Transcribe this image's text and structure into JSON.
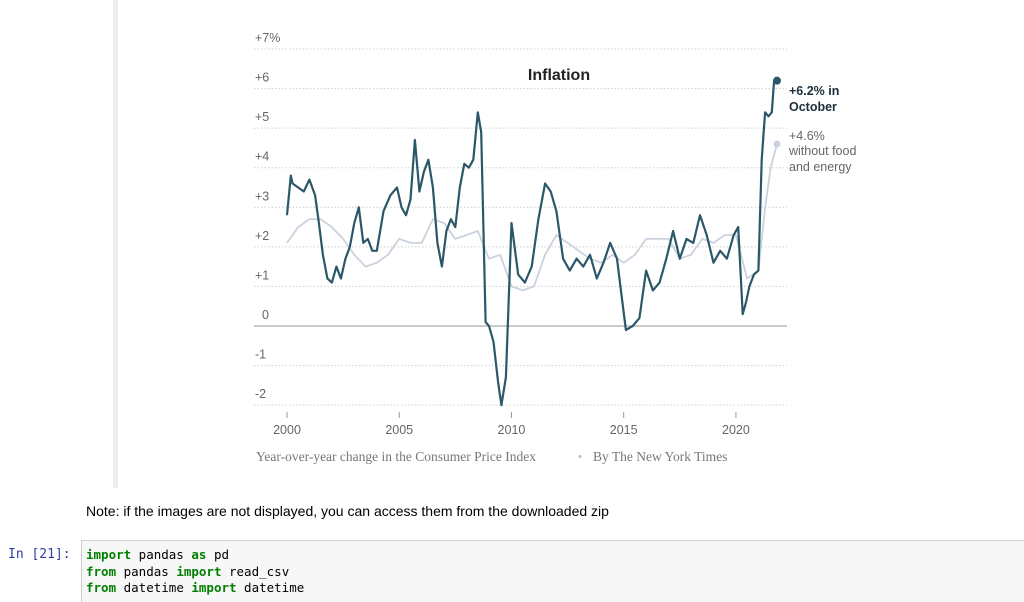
{
  "chart_data": {
    "type": "line",
    "title": "Inflation",
    "caption": "Year-over-year change in the Consumer Price Index",
    "credit": "By The New York Times",
    "y_ticks": [
      "+7%",
      "+6",
      "+5",
      "+4",
      "+3",
      "+2",
      "+1",
      "0",
      "-1",
      "-2"
    ],
    "y_tick_values": [
      7,
      6,
      5,
      4,
      3,
      2,
      1,
      0,
      -1,
      -2
    ],
    "x_ticks": [
      "2000",
      "2005",
      "2010",
      "2015",
      "2020"
    ],
    "x_tick_values": [
      2000,
      2005,
      2010,
      2015,
      2020
    ],
    "xlim": [
      2000,
      2021.83
    ],
    "ylim": [
      -2,
      7
    ],
    "grid": true,
    "series": [
      {
        "name": "Consumer Price Index",
        "color": "#2b5868",
        "x": [
          2000.0,
          2000.17,
          2000.25,
          2000.5,
          2000.75,
          2001.0,
          2001.25,
          2001.42,
          2001.6,
          2001.8,
          2002.0,
          2002.2,
          2002.4,
          2002.6,
          2002.8,
          2003.0,
          2003.2,
          2003.4,
          2003.6,
          2003.8,
          2004.0,
          2004.3,
          2004.6,
          2004.9,
          2005.1,
          2005.3,
          2005.5,
          2005.7,
          2005.9,
          2006.1,
          2006.3,
          2006.5,
          2006.7,
          2006.9,
          2007.1,
          2007.3,
          2007.5,
          2007.7,
          2007.9,
          2008.1,
          2008.3,
          2008.5,
          2008.65,
          2008.85,
          2009.0,
          2009.2,
          2009.4,
          2009.55,
          2009.75,
          2010.0,
          2010.3,
          2010.6,
          2010.9,
          2011.2,
          2011.5,
          2011.75,
          2012.0,
          2012.3,
          2012.6,
          2012.9,
          2013.2,
          2013.5,
          2013.8,
          2014.1,
          2014.4,
          2014.7,
          2014.9,
          2015.1,
          2015.4,
          2015.7,
          2016.0,
          2016.3,
          2016.6,
          2016.9,
          2017.2,
          2017.5,
          2017.8,
          2018.1,
          2018.4,
          2018.7,
          2019.0,
          2019.3,
          2019.6,
          2019.9,
          2020.1,
          2020.3,
          2020.45,
          2020.6,
          2020.8,
          2021.0,
          2021.15,
          2021.3,
          2021.45,
          2021.6,
          2021.7,
          2021.83
        ],
        "values": [
          2.8,
          3.8,
          3.6,
          3.5,
          3.4,
          3.7,
          3.3,
          2.6,
          1.8,
          1.2,
          1.1,
          1.5,
          1.2,
          1.7,
          2.0,
          2.6,
          3.0,
          2.1,
          2.2,
          1.9,
          1.9,
          2.9,
          3.3,
          3.5,
          3.0,
          2.8,
          3.2,
          4.7,
          3.4,
          3.9,
          4.2,
          3.5,
          2.1,
          1.5,
          2.4,
          2.7,
          2.5,
          3.5,
          4.1,
          4.0,
          4.2,
          5.4,
          4.9,
          0.1,
          0.0,
          -0.4,
          -1.4,
          -2.0,
          -1.3,
          2.6,
          1.3,
          1.1,
          1.5,
          2.7,
          3.6,
          3.4,
          2.9,
          1.7,
          1.4,
          1.7,
          1.5,
          1.8,
          1.2,
          1.6,
          2.1,
          1.7,
          0.8,
          -0.1,
          0.0,
          0.2,
          1.4,
          0.9,
          1.1,
          1.7,
          2.4,
          1.7,
          2.2,
          2.1,
          2.8,
          2.3,
          1.6,
          1.9,
          1.7,
          2.3,
          2.5,
          0.3,
          0.6,
          1.0,
          1.3,
          1.4,
          4.2,
          5.4,
          5.3,
          5.4,
          6.2,
          6.2
        ]
      },
      {
        "name": "without food and energy",
        "color": "#c9d2dd",
        "x": [
          2000.0,
          2000.5,
          2001.0,
          2001.5,
          2002.0,
          2002.5,
          2003.0,
          2003.5,
          2004.0,
          2004.5,
          2005.0,
          2005.5,
          2006.0,
          2006.5,
          2007.0,
          2007.5,
          2008.0,
          2008.5,
          2009.0,
          2009.5,
          2010.0,
          2010.5,
          2011.0,
          2011.5,
          2012.0,
          2012.5,
          2013.0,
          2013.5,
          2014.0,
          2014.5,
          2015.0,
          2015.5,
          2016.0,
          2016.5,
          2017.0,
          2017.5,
          2018.0,
          2018.5,
          2019.0,
          2019.5,
          2020.0,
          2020.5,
          2021.0,
          2021.3,
          2021.55,
          2021.83
        ],
        "values": [
          2.1,
          2.5,
          2.7,
          2.7,
          2.5,
          2.2,
          1.8,
          1.5,
          1.6,
          1.8,
          2.2,
          2.1,
          2.1,
          2.7,
          2.6,
          2.2,
          2.3,
          2.4,
          1.7,
          1.8,
          1.0,
          0.9,
          1.0,
          1.8,
          2.3,
          2.1,
          1.9,
          1.7,
          1.6,
          1.8,
          1.6,
          1.8,
          2.2,
          2.2,
          2.2,
          1.7,
          1.8,
          2.2,
          2.1,
          2.3,
          2.3,
          1.2,
          1.4,
          3.0,
          4.0,
          4.6
        ]
      }
    ],
    "annotations": [
      {
        "line1": "+6.2% in",
        "line2": "October",
        "line3": ""
      },
      {
        "line1": "+4.6%",
        "line2": "without food",
        "line3": "and energy"
      }
    ]
  },
  "note": "Note: if the images are not displayed, you can access them from the downloaded zip",
  "cell": {
    "prompt": "In [21]:",
    "lines": [
      [
        {
          "kw": true,
          "t": "import"
        },
        {
          "kw": false,
          "t": " pandas "
        },
        {
          "kw": true,
          "t": "as"
        },
        {
          "kw": false,
          "t": " pd"
        }
      ],
      [
        {
          "kw": true,
          "t": "from"
        },
        {
          "kw": false,
          "t": " pandas "
        },
        {
          "kw": true,
          "t": "import"
        },
        {
          "kw": false,
          "t": " read_csv"
        }
      ],
      [
        {
          "kw": true,
          "t": "from"
        },
        {
          "kw": false,
          "t": " datetime "
        },
        {
          "kw": true,
          "t": "import"
        },
        {
          "kw": false,
          "t": " datetime"
        }
      ]
    ]
  }
}
